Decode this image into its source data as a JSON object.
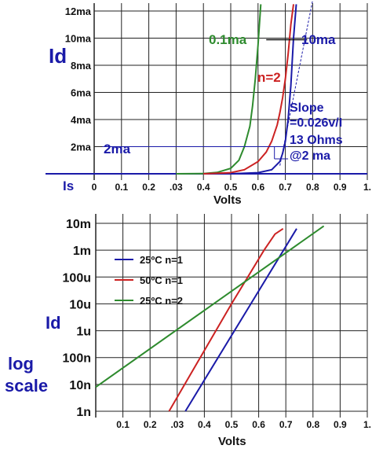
{
  "chart_data": [
    {
      "type": "line",
      "xlabel": "Volts",
      "ylabel": "Id",
      "x_ticks": [
        "0",
        "0.1",
        "0.2",
        ".03",
        "0.4",
        "0.5",
        "0.6",
        "0.7",
        "0.8",
        "0.9",
        "1."
      ],
      "y_ticks": [
        "12ma",
        "10ma",
        "8ma",
        "6ma",
        "4ma",
        "2ma"
      ],
      "xlim": [
        0,
        1.0
      ],
      "ylim": [
        0,
        12
      ],
      "baseline_label": "Is",
      "series": [
        {
          "color": "#2e8b2e",
          "points": [
            [
              0.3,
              0.0
            ],
            [
              0.4,
              0.02
            ],
            [
              0.45,
              0.1
            ],
            [
              0.5,
              0.4
            ],
            [
              0.53,
              1.0
            ],
            [
              0.55,
              2.0
            ],
            [
              0.57,
              3.5
            ],
            [
              0.58,
              5.0
            ],
            [
              0.59,
              7.0
            ],
            [
              0.6,
              9.5
            ],
            [
              0.61,
              12.5
            ]
          ]
        },
        {
          "color": "#cc2222",
          "points": [
            [
              0.4,
              0.0
            ],
            [
              0.5,
              0.08
            ],
            [
              0.55,
              0.3
            ],
            [
              0.6,
              0.9
            ],
            [
              0.63,
              1.6
            ],
            [
              0.65,
              2.4
            ],
            [
              0.67,
              3.6
            ],
            [
              0.68,
              4.5
            ],
            [
              0.69,
              5.6
            ],
            [
              0.7,
              7.0
            ],
            [
              0.71,
              8.8
            ],
            [
              0.72,
              11.0
            ],
            [
              0.73,
              12.5
            ]
          ]
        },
        {
          "color": "#1a1aa8",
          "points": [
            [
              0.5,
              0.0
            ],
            [
              0.6,
              0.08
            ],
            [
              0.65,
              0.3
            ],
            [
              0.68,
              0.9
            ],
            [
              0.69,
              1.5
            ],
            [
              0.7,
              2.4
            ],
            [
              0.71,
              4.0
            ],
            [
              0.72,
              6.5
            ],
            [
              0.73,
              10.0
            ],
            [
              0.74,
              12.5
            ]
          ]
        }
      ],
      "annotations": [
        {
          "text": "0.1ma",
          "color": "#2e8b2e"
        },
        {
          "text": "n=2",
          "color": "#cc2222"
        },
        {
          "text": "10ma",
          "color": "#1a1aa8"
        },
        {
          "text": "2ma",
          "color": "#1a1aa8"
        },
        {
          "text": "Slope",
          "color": "#1a1aa8"
        },
        {
          "text": "=0.026v/I",
          "color": "#1a1aa8"
        },
        {
          "text": "13 Ohms",
          "color": "#1a1aa8"
        },
        {
          "text": "@2 ma",
          "color": "#1a1aa8"
        }
      ]
    },
    {
      "type": "line",
      "xlabel": "Volts",
      "ylabel_lines": [
        "Id",
        "log",
        "scale"
      ],
      "x_ticks": [
        "0.1",
        "0.2",
        ".03",
        "0.4",
        "0.5",
        "0.6",
        "0.7",
        "0.8",
        "0.9",
        "1."
      ],
      "y_ticks": [
        "10m",
        "1m",
        "100u",
        "10u",
        "1u",
        "100n",
        "10n",
        "1n"
      ],
      "xlim": [
        0,
        1.0
      ],
      "ylim_log10": [
        -9,
        -2
      ],
      "log_scale": true,
      "legend_placement": "left",
      "series": [
        {
          "name": "25ºC n=1",
          "color": "#1a1aa8",
          "points": [
            [
              0.33,
              -9.0
            ],
            [
              0.74,
              -2.2
            ]
          ]
        },
        {
          "name": "50ºC n=1",
          "color": "#cc2222",
          "points": [
            [
              0.27,
              -9.0
            ],
            [
              0.5,
              -5.0
            ],
            [
              0.62,
              -3.0
            ],
            [
              0.66,
              -2.4
            ],
            [
              0.69,
              -2.2
            ]
          ]
        },
        {
          "name": "25ºC n=2",
          "color": "#2e8b2e",
          "points": [
            [
              0.0,
              -8.1
            ],
            [
              0.84,
              -2.1
            ]
          ]
        }
      ]
    }
  ]
}
